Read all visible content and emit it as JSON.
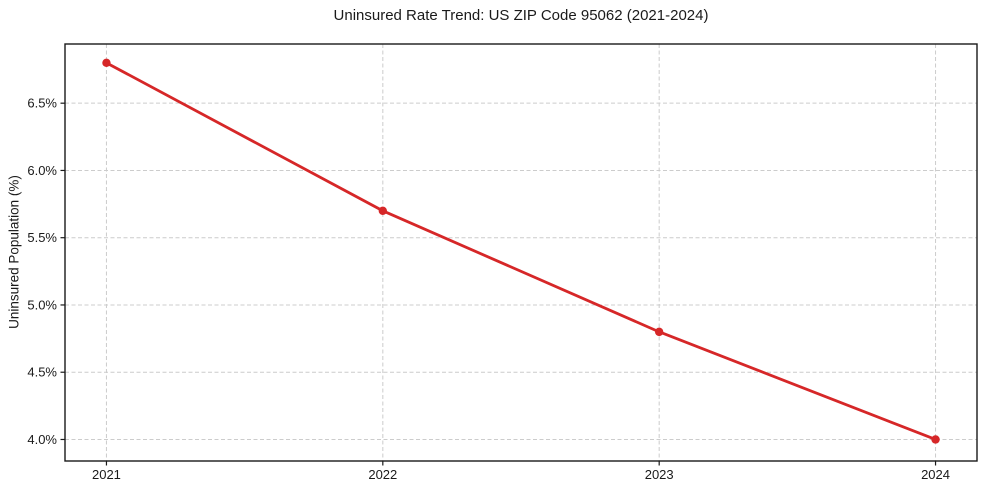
{
  "chart_data": {
    "type": "line",
    "title": "Uninsured Rate Trend: US ZIP Code 95062 (2021-2024)",
    "xlabel": "",
    "ylabel": "Uninsured Population (%)",
    "x": [
      2021,
      2022,
      2023,
      2024
    ],
    "values": [
      6.8,
      5.7,
      4.8,
      4.0
    ],
    "y_ticks": [
      4.0,
      4.5,
      5.0,
      5.5,
      6.0,
      6.5
    ],
    "y_tick_suffix": "%",
    "xlim": [
      2020.85,
      2024.15
    ],
    "ylim": [
      3.84,
      6.94
    ],
    "grid": true,
    "legend": "none",
    "line_color": "#d62728",
    "marker": "circle",
    "grid_color": "#cccccc",
    "frame_color": "#1a1a1a",
    "text_color": "#1a1a1a",
    "background": "#ffffff"
  }
}
